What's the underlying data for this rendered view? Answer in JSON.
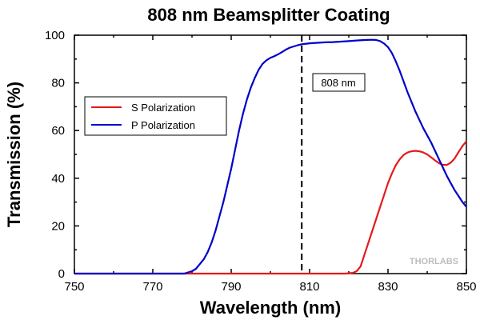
{
  "chart_data": {
    "type": "line",
    "title": "808 nm Beamsplitter Coating",
    "xlabel": "Wavelength (nm)",
    "ylabel": "Transmission (%)",
    "xlim": [
      750,
      850
    ],
    "ylim": [
      0,
      100
    ],
    "xticks": [
      750,
      770,
      790,
      810,
      830,
      850
    ],
    "yticks": [
      0,
      20,
      40,
      60,
      80,
      100
    ],
    "grid": false,
    "legend_position": "upper-left",
    "series": [
      {
        "name": "S Polarization",
        "color": "#e41a1c",
        "points": [
          [
            750,
            0
          ],
          [
            760,
            0
          ],
          [
            770,
            0
          ],
          [
            780,
            0
          ],
          [
            790,
            0
          ],
          [
            800,
            0
          ],
          [
            810,
            0
          ],
          [
            815,
            0
          ],
          [
            819,
            0
          ],
          [
            821,
            0.3
          ],
          [
            822,
            1
          ],
          [
            823,
            3
          ],
          [
            824,
            8
          ],
          [
            825,
            13
          ],
          [
            826,
            18
          ],
          [
            827,
            23
          ],
          [
            828,
            28
          ],
          [
            829,
            33
          ],
          [
            830,
            38
          ],
          [
            831,
            42
          ],
          [
            832,
            45.5
          ],
          [
            833,
            48
          ],
          [
            834,
            49.8
          ],
          [
            835,
            50.8
          ],
          [
            836,
            51.3
          ],
          [
            837,
            51.5
          ],
          [
            838,
            51.3
          ],
          [
            839,
            50.8
          ],
          [
            840,
            50
          ],
          [
            841,
            48.8
          ],
          [
            842,
            47.5
          ],
          [
            843,
            46.3
          ],
          [
            844,
            45.6
          ],
          [
            845,
            45.6
          ],
          [
            846,
            46.5
          ],
          [
            847,
            48.3
          ],
          [
            848,
            51
          ],
          [
            849,
            53.5
          ],
          [
            850,
            55.5
          ]
        ]
      },
      {
        "name": "P Polarization",
        "color": "#0000cc",
        "points": [
          [
            750,
            0
          ],
          [
            770,
            0
          ],
          [
            778,
            0
          ],
          [
            779,
            0.5
          ],
          [
            780,
            1
          ],
          [
            781,
            2
          ],
          [
            782,
            4
          ],
          [
            783,
            6
          ],
          [
            784,
            9
          ],
          [
            785,
            13
          ],
          [
            786,
            18
          ],
          [
            787,
            24
          ],
          [
            788,
            30
          ],
          [
            789,
            37
          ],
          [
            790,
            44
          ],
          [
            791,
            52
          ],
          [
            792,
            60
          ],
          [
            793,
            67
          ],
          [
            794,
            73
          ],
          [
            795,
            78
          ],
          [
            796,
            82
          ],
          [
            797,
            85.5
          ],
          [
            798,
            88
          ],
          [
            799,
            89.5
          ],
          [
            800,
            90.5
          ],
          [
            801,
            91.2
          ],
          [
            802,
            92
          ],
          [
            803,
            93
          ],
          [
            804,
            94
          ],
          [
            805,
            94.8
          ],
          [
            806,
            95.3
          ],
          [
            807,
            95.8
          ],
          [
            808,
            96.2
          ],
          [
            810,
            96.6
          ],
          [
            812,
            96.8
          ],
          [
            814,
            97
          ],
          [
            816,
            97.1
          ],
          [
            818,
            97.3
          ],
          [
            820,
            97.5
          ],
          [
            822,
            97.8
          ],
          [
            824,
            98
          ],
          [
            826,
            98.1
          ],
          [
            827,
            98
          ],
          [
            828,
            97.5
          ],
          [
            829,
            96.5
          ],
          [
            830,
            95
          ],
          [
            831,
            92.5
          ],
          [
            832,
            89
          ],
          [
            833,
            85
          ],
          [
            834,
            80.5
          ],
          [
            835,
            76
          ],
          [
            836,
            72
          ],
          [
            837,
            68
          ],
          [
            838,
            64.5
          ],
          [
            839,
            61
          ],
          [
            840,
            58
          ],
          [
            841,
            55
          ],
          [
            842,
            51.5
          ],
          [
            843,
            48
          ],
          [
            844,
            44.5
          ],
          [
            845,
            41
          ],
          [
            846,
            38
          ],
          [
            847,
            35
          ],
          [
            848,
            32.5
          ],
          [
            849,
            30
          ],
          [
            850,
            28
          ]
        ]
      }
    ],
    "marker": {
      "x": 808,
      "label": "808 nm",
      "style": "dashed"
    },
    "watermark": "THORLABS"
  }
}
